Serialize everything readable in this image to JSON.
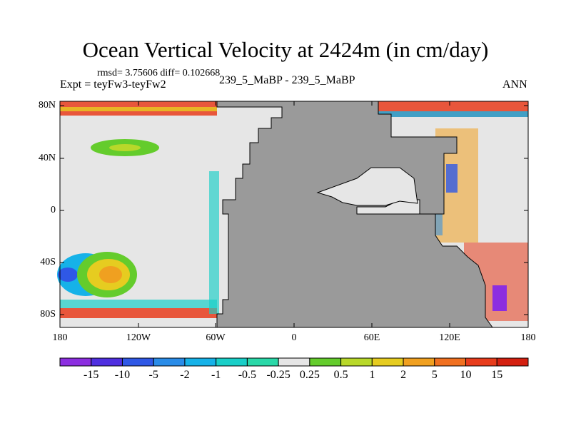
{
  "title": "Ocean Vertical Velocity at 2424m (in cm/day)",
  "stats": {
    "rmsd_label": "rmsd= 3.75606 diff= 0.102668"
  },
  "left_label": "Expt = teyFw3-teyFw2",
  "center_label": "239_5_MaBP - 239_5_MaBP",
  "right_label": "ANN",
  "map": {
    "lat_ticks": [
      "80N",
      "40N",
      "0",
      "40S",
      "80S"
    ],
    "lon_ticks": [
      "180",
      "120W",
      "60W",
      "0",
      "60E",
      "120E",
      "180"
    ],
    "land_color": "#9a9a9a",
    "neutral_ocean_color": "#e6e6e6"
  },
  "colorbar": {
    "labels": [
      "-15",
      "-10",
      "-5",
      "-2",
      "-1",
      "-0.5",
      "-0.25",
      "0.25",
      "0.5",
      "1",
      "2",
      "5",
      "10",
      "15"
    ],
    "colors": [
      "#8c2ee0",
      "#4f2fe0",
      "#2f58e6",
      "#2a8ce8",
      "#16b2e8",
      "#19cfc8",
      "#2ad8a8",
      "#e6e6e6",
      "#64cc2c",
      "#b8d82a",
      "#e6cc20",
      "#f0a020",
      "#f07020",
      "#e83c1c",
      "#d42010"
    ]
  }
}
